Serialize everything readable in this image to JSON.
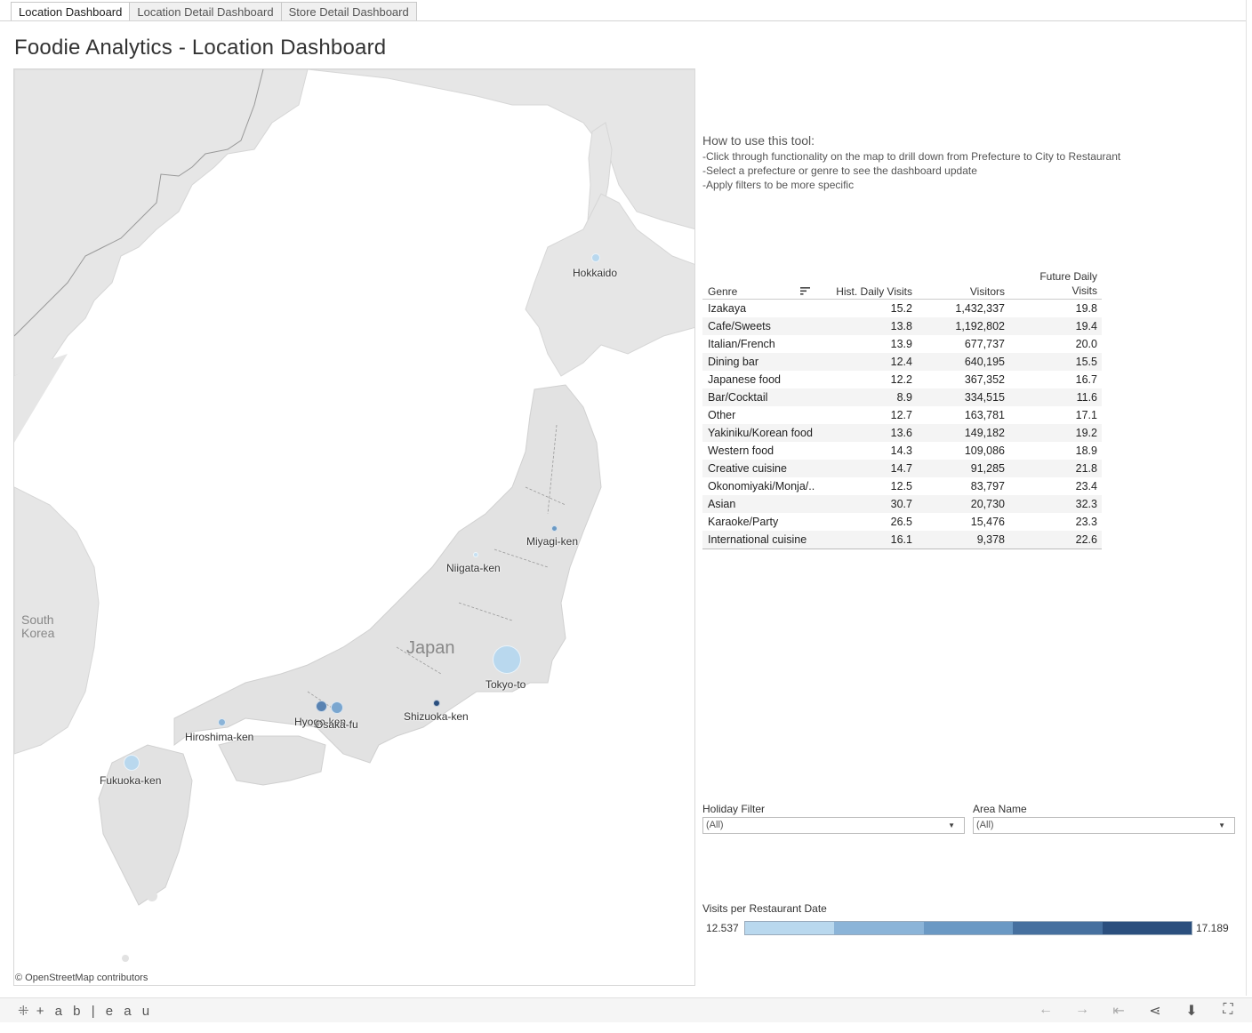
{
  "tabs": [
    {
      "label": "Location Dashboard",
      "active": true
    },
    {
      "label": "Location Detail Dashboard",
      "active": false
    },
    {
      "label": "Store Detail Dashboard",
      "active": false
    }
  ],
  "page_title": "Foodie Analytics - Location Dashboard",
  "map": {
    "attribution": "© OpenStreetMap contributors",
    "country_label": "Japan",
    "neighbor_label": "South Korea",
    "neighbor_label_line1": "South",
    "neighbor_label_line2": "Korea",
    "prefectures": [
      {
        "name": "Hokkaido",
        "color": "#b9d8ee"
      },
      {
        "name": "Miyagi-ken",
        "color": "#6b99c4"
      },
      {
        "name": "Niigata-ken",
        "color": "#c6e0f2"
      },
      {
        "name": "Tokyo-to",
        "color": "#b9d8ee"
      },
      {
        "name": "Shizuoka-ken",
        "color": "#2b4f7e"
      },
      {
        "name": "Hyogo-ken",
        "color": "#5983b2"
      },
      {
        "name": "Osaka-fu",
        "color": "#7aa6cf"
      },
      {
        "name": "Hiroshima-ken",
        "color": "#8bb4d8"
      },
      {
        "name": "Fukuoka-ken",
        "color": "#b9d8ee"
      }
    ]
  },
  "howto": {
    "heading": "How to use this tool:",
    "lines": [
      "-Click through functionality on the map to drill down from Prefecture to City to Restaurant",
      "-Select a prefecture or genre to see the dashboard update",
      "-Apply filters to be more specific"
    ]
  },
  "table": {
    "headers": {
      "genre": "Genre",
      "hist": "Hist. Daily Visits",
      "visitors": "Visitors",
      "future_line1": "Future Daily",
      "future_line2": "Visits"
    },
    "rows": [
      {
        "genre": "Izakaya",
        "hist": "15.2",
        "visitors": "1,432,337",
        "future": "19.8"
      },
      {
        "genre": "Cafe/Sweets",
        "hist": "13.8",
        "visitors": "1,192,802",
        "future": "19.4"
      },
      {
        "genre": "Italian/French",
        "hist": "13.9",
        "visitors": "677,737",
        "future": "20.0"
      },
      {
        "genre": "Dining bar",
        "hist": "12.4",
        "visitors": "640,195",
        "future": "15.5"
      },
      {
        "genre": "Japanese food",
        "hist": "12.2",
        "visitors": "367,352",
        "future": "16.7"
      },
      {
        "genre": "Bar/Cocktail",
        "hist": "8.9",
        "visitors": "334,515",
        "future": "11.6"
      },
      {
        "genre": "Other",
        "hist": "12.7",
        "visitors": "163,781",
        "future": "17.1"
      },
      {
        "genre": "Yakiniku/Korean food",
        "hist": "13.6",
        "visitors": "149,182",
        "future": "19.2"
      },
      {
        "genre": "Western food",
        "hist": "14.3",
        "visitors": "109,086",
        "future": "18.9"
      },
      {
        "genre": "Creative cuisine",
        "hist": "14.7",
        "visitors": "91,285",
        "future": "21.8"
      },
      {
        "genre": "Okonomiyaki/Monja/..",
        "hist": "12.5",
        "visitors": "83,797",
        "future": "23.4"
      },
      {
        "genre": "Asian",
        "hist": "30.7",
        "visitors": "20,730",
        "future": "32.3"
      },
      {
        "genre": "Karaoke/Party",
        "hist": "26.5",
        "visitors": "15,476",
        "future": "23.3"
      },
      {
        "genre": "International cuisine",
        "hist": "16.1",
        "visitors": "9,378",
        "future": "22.6"
      }
    ]
  },
  "filters": {
    "holiday": {
      "label": "Holiday Filter",
      "value": "(All)"
    },
    "area": {
      "label": "Area Name",
      "value": "(All)"
    }
  },
  "legend": {
    "title": "Visits per Restaurant Date",
    "min": "12.537",
    "max": "17.189",
    "colors": [
      "#b9d8ee",
      "#8bb4d8",
      "#6b99c4",
      "#46709f",
      "#2b4f7e"
    ]
  },
  "footer": {
    "brand": "+ a b | e a u",
    "icons": [
      "undo-icon",
      "redo-icon",
      "revert-icon",
      "share-icon",
      "download-icon",
      "fullscreen-icon"
    ]
  }
}
